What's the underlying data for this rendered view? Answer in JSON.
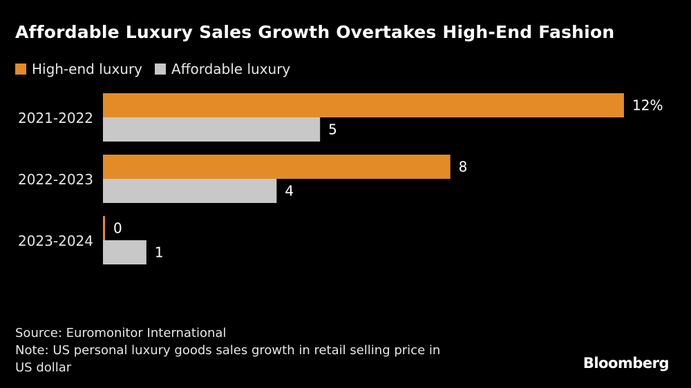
{
  "title": "Affordable Luxury Sales Growth Overtakes High-End Fashion",
  "chart_data": {
    "type": "bar",
    "orientation": "horizontal",
    "categories": [
      "2021-2022",
      "2022-2023",
      "2023-2024"
    ],
    "series": [
      {
        "name": "High-end luxury",
        "values": [
          12,
          8,
          0
        ],
        "color": "#e38b27",
        "labels": [
          "12%",
          "8",
          "0"
        ]
      },
      {
        "name": "Affordable luxury",
        "values": [
          5,
          4,
          1
        ],
        "color": "#c8c8c8",
        "labels": [
          "5",
          "4",
          "1"
        ]
      }
    ],
    "xlim": [
      0,
      12
    ],
    "grid": false,
    "legend": "top-left"
  },
  "footer": {
    "source": "Source: Euromonitor International",
    "note_line1": "Note: US personal luxury goods sales growth in retail selling price in",
    "note_line2": "US dollar"
  },
  "logo": "Bloomberg"
}
